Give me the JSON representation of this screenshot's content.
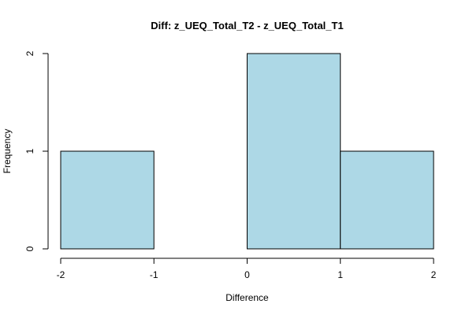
{
  "chart_data": {
    "type": "bar",
    "subtype": "histogram",
    "title": "Diff: z_UEQ_Total_T2 - z_UEQ_Total_T1",
    "xlabel": "Difference",
    "ylabel": "Frequency",
    "bins": [
      {
        "start": -2,
        "end": -1,
        "count": 1
      },
      {
        "start": -1,
        "end": 0,
        "count": 0
      },
      {
        "start": 0,
        "end": 1,
        "count": 2
      },
      {
        "start": 1,
        "end": 2,
        "count": 1
      }
    ],
    "xlim": [
      -2,
      2
    ],
    "ylim": [
      0,
      2
    ],
    "xticks": [
      -2,
      -1,
      0,
      1,
      2
    ],
    "yticks": [
      0,
      1,
      2
    ],
    "bar_color": "#ADD8E6",
    "grid": false,
    "legend": "none"
  }
}
